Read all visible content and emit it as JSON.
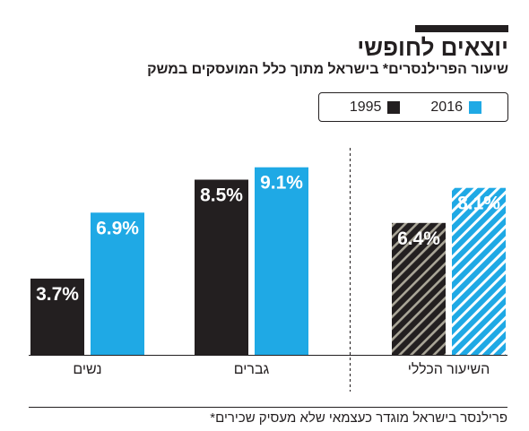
{
  "chart_data": {
    "type": "bar",
    "title": "יוצאים לחופשי",
    "subtitle": "שיעור הפרילנסרים* בישראל מתוך כלל המועסקים במשק",
    "categories": [
      "נשים",
      "גברים",
      "השיעור הכללי"
    ],
    "series": [
      {
        "name": "1995",
        "color": "#231f20",
        "values": [
          3.7,
          8.5,
          6.4
        ],
        "labels": [
          "3.7%",
          "8.5%",
          "6.4%"
        ]
      },
      {
        "name": "2016",
        "color": "#1fa9e5",
        "values": [
          6.9,
          9.1,
          8.1
        ],
        "labels": [
          "6.9%",
          "9.1%",
          "8.1%"
        ]
      }
    ],
    "hatched": [
      false,
      false,
      true
    ],
    "legend_position": "top-right",
    "grid": false,
    "footnote": "*פרילנסר בישראל מוגדר כעצמאי שלא מעסיק שכירים"
  }
}
